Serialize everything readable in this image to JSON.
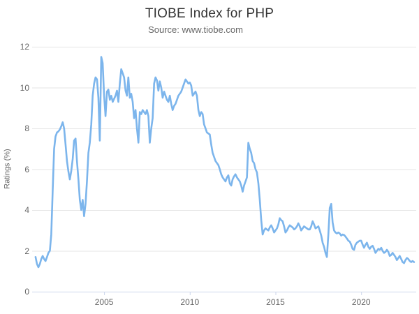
{
  "header": {
    "title": "TIOBE Index for PHP",
    "subtitle": "Source: www.tiobe.com"
  },
  "colors": {
    "line": "#7cb5ec",
    "gridline": "#e6e6e6",
    "axis_line": "#ccd6eb",
    "tick_mark": "#ccd6eb",
    "axis_label": "#666666",
    "title_text": "#333333",
    "subtitle_text": "#666666",
    "background": "#ffffff"
  },
  "chart_data": {
    "type": "line",
    "title": "TIOBE Index for PHP",
    "subtitle": "Source: www.tiobe.com",
    "xlabel": "",
    "ylabel": "Ratings (%)",
    "ylim": [
      0,
      12
    ],
    "xlim": [
      2000.8,
      2023.21
    ],
    "yticks": [
      0,
      2,
      4,
      6,
      8,
      10,
      12
    ],
    "xticks": [
      2005,
      2010,
      2015,
      2020
    ],
    "grid": true,
    "legend": "none",
    "series": [
      {
        "name": "PHP",
        "color": "#7cb5ec",
        "x_start_year": 2001,
        "x_step_months": 1,
        "values": [
          1.7,
          1.35,
          1.2,
          1.35,
          1.6,
          1.75,
          1.6,
          1.5,
          1.7,
          1.9,
          2.0,
          2.8,
          5.0,
          7.0,
          7.6,
          7.8,
          7.85,
          7.95,
          8.1,
          8.3,
          8.0,
          7.2,
          6.4,
          5.9,
          5.5,
          5.9,
          6.5,
          7.4,
          7.5,
          6.4,
          5.5,
          4.5,
          4.0,
          4.5,
          3.7,
          4.3,
          5.4,
          6.8,
          7.3,
          8.2,
          9.6,
          10.2,
          10.5,
          10.4,
          9.5,
          7.4,
          11.5,
          11.2,
          9.6,
          8.6,
          9.8,
          9.9,
          9.4,
          9.6,
          9.3,
          9.45,
          9.6,
          9.85,
          9.3,
          10.2,
          10.9,
          10.7,
          10.5,
          9.85,
          9.6,
          10.5,
          9.5,
          9.7,
          9.3,
          8.5,
          8.9,
          8.0,
          7.3,
          8.8,
          8.7,
          8.9,
          8.8,
          8.7,
          8.9,
          8.6,
          7.3,
          8.0,
          8.5,
          10.2,
          10.5,
          10.35,
          9.85,
          10.3,
          10.0,
          9.5,
          9.8,
          9.6,
          9.4,
          9.3,
          9.6,
          9.2,
          8.9,
          9.1,
          9.2,
          9.4,
          9.6,
          9.7,
          9.8,
          10.0,
          10.2,
          10.4,
          10.3,
          10.2,
          10.25,
          10.1,
          9.6,
          9.7,
          9.8,
          9.6,
          8.9,
          8.6,
          8.8,
          8.7,
          8.2,
          8.0,
          7.8,
          7.75,
          7.7,
          7.2,
          6.8,
          6.6,
          6.4,
          6.3,
          6.2,
          6.0,
          5.75,
          5.6,
          5.5,
          5.4,
          5.6,
          5.7,
          5.3,
          5.2,
          5.5,
          5.65,
          5.75,
          5.6,
          5.5,
          5.4,
          5.2,
          4.9,
          5.2,
          5.4,
          5.6,
          7.3,
          7.0,
          6.8,
          6.4,
          6.3,
          6.0,
          5.85,
          5.3,
          4.5,
          3.5,
          2.8,
          3.0,
          3.1,
          3.05,
          3.0,
          3.15,
          3.25,
          3.1,
          2.9,
          3.0,
          3.1,
          3.3,
          3.6,
          3.5,
          3.45,
          3.2,
          2.9,
          3.0,
          3.15,
          3.25,
          3.2,
          3.15,
          3.05,
          3.1,
          3.2,
          3.35,
          3.2,
          3.0,
          3.1,
          3.2,
          3.15,
          3.1,
          3.05,
          3.05,
          3.2,
          3.45,
          3.3,
          3.1,
          3.15,
          3.2,
          3.0,
          2.75,
          2.4,
          2.2,
          1.9,
          1.7,
          2.8,
          4.1,
          4.3,
          3.4,
          3.0,
          2.9,
          2.85,
          2.9,
          2.85,
          2.75,
          2.8,
          2.78,
          2.7,
          2.6,
          2.5,
          2.45,
          2.3,
          2.1,
          2.05,
          2.3,
          2.4,
          2.45,
          2.5,
          2.5,
          2.3,
          2.15,
          2.3,
          2.4,
          2.2,
          2.1,
          2.2,
          2.25,
          2.1,
          1.9,
          2.0,
          2.1,
          2.05,
          2.15,
          2.0,
          1.9,
          1.95,
          2.05,
          1.95,
          1.75,
          1.8,
          1.9,
          1.8,
          1.7,
          1.55,
          1.65,
          1.75,
          1.6,
          1.45,
          1.4,
          1.55,
          1.65,
          1.6,
          1.5,
          1.45,
          1.5,
          1.45
        ]
      }
    ]
  }
}
